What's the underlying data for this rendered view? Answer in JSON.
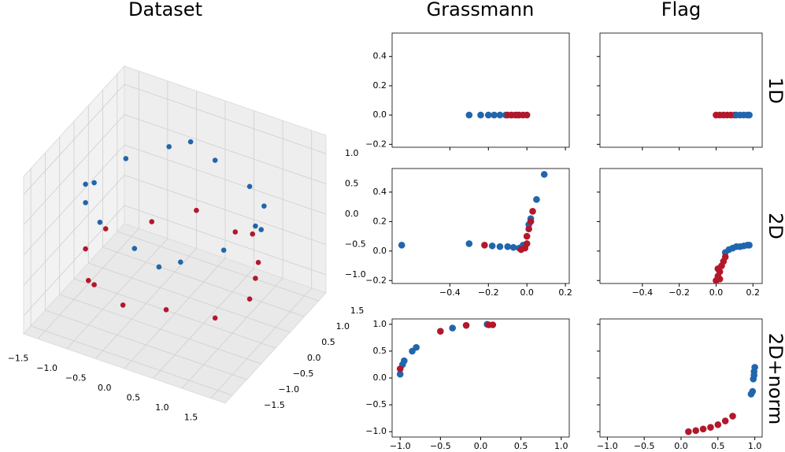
{
  "column_titles": [
    "Grassmann",
    "Flag"
  ],
  "row_labels": [
    "1D",
    "2D",
    "2D+norm"
  ],
  "chart_data": [
    {
      "type": "scatter3d",
      "title": "Dataset",
      "xlim": [
        -1.75,
        1.75
      ],
      "ylim": [
        -1.75,
        1.75
      ],
      "zlim": [
        -1.3,
        1.3
      ],
      "xticks": [
        {
          "value": -1.5,
          "label": "−1.5"
        },
        {
          "value": -1.0,
          "label": "−1.0"
        },
        {
          "value": -0.5,
          "label": "−0.5"
        },
        {
          "value": 0,
          "label": "0.0"
        },
        0.5,
        {
          "value": 1,
          "label": "1.0"
        },
        1.5
      ],
      "yticks": [
        {
          "value": -1.5,
          "label": "−1.5"
        },
        {
          "value": -1.0,
          "label": "−1.0"
        },
        {
          "value": -0.5,
          "label": "−0.5"
        },
        {
          "value": 0,
          "label": "0.0"
        },
        0.5,
        {
          "value": 1,
          "label": "1.0"
        },
        1.5
      ],
      "zticks": [
        {
          "value": -1.0,
          "label": "−1.0"
        },
        {
          "value": -0.5,
          "label": "−0.5"
        },
        {
          "value": 0,
          "label": "0.0"
        },
        0.5,
        {
          "value": 1,
          "label": "1.0"
        }
      ],
      "series": [
        {
          "color": "#b2182b",
          "x": [
            1.3,
            1.0,
            0.4,
            -0.3,
            -0.9,
            -1.35,
            -1.3,
            -0.9,
            -0.2,
            0.5,
            1.1,
            1.4,
            0.8,
            -1.1
          ],
          "y": [
            0.2,
            0.9,
            1.3,
            1.35,
            1.0,
            0.3,
            -0.5,
            -1.0,
            -1.4,
            -1.3,
            -0.8,
            -0.2,
            1.1,
            -0.8
          ],
          "z": [
            -0.4,
            -0.6,
            -0.5,
            -0.4,
            -0.6,
            -0.5,
            -0.4,
            -0.6,
            -0.5,
            -0.4,
            -0.6,
            -0.5,
            -0.3,
            -0.7
          ]
        },
        {
          "color": "#2166ac",
          "x": [
            1.4,
            1.2,
            0.7,
            0.0,
            -0.7,
            -1.2,
            -1.4,
            -1.2,
            -0.7,
            0.0,
            0.7,
            1.2,
            1.3,
            -0.4,
            -1.35,
            0.4
          ],
          "y": [
            0.0,
            0.7,
            1.2,
            1.4,
            1.2,
            0.7,
            0.0,
            -0.7,
            -1.2,
            -1.4,
            -1.2,
            -0.7,
            0.4,
            1.35,
            -0.4,
            -1.35
          ],
          "z": [
            0.6,
            0.5,
            0.4,
            0.5,
            0.6,
            0.5,
            0.4,
            0.5,
            0.6,
            0.5,
            0.4,
            0.5,
            0.3,
            0.7,
            0.6,
            0.3
          ]
        }
      ]
    },
    {
      "type": "scatter",
      "xlim": [
        -0.7,
        0.22
      ],
      "ylim": [
        -0.22,
        0.56
      ],
      "xticks": [
        {
          "value": -0.4,
          "label": "−0.4"
        },
        {
          "value": -0.2,
          "label": "−0.2"
        },
        {
          "value": 0,
          "label": "0.0"
        },
        0.2
      ],
      "yticks": [
        {
          "value": -0.2,
          "label": "−0.2"
        },
        {
          "value": 0,
          "label": "0.0"
        },
        0.2,
        0.4
      ],
      "show_xtick_labels": false,
      "show_ytick_labels": true,
      "series": [
        {
          "color": "#2166ac",
          "x": [
            -0.3,
            -0.24,
            -0.2,
            -0.17,
            -0.14,
            -0.11,
            -0.08,
            -0.05
          ],
          "y": [
            0,
            0,
            0,
            0,
            0,
            0,
            0,
            0
          ]
        },
        {
          "color": "#b2182b",
          "x": [
            -0.1,
            -0.08,
            -0.06,
            -0.04,
            -0.02,
            0.0
          ],
          "y": [
            0,
            0,
            0,
            0,
            0,
            0
          ]
        }
      ]
    },
    {
      "type": "scatter",
      "xlim": [
        -0.63,
        0.25
      ],
      "ylim": [
        -0.22,
        0.56
      ],
      "xticks": [
        {
          "value": -0.4,
          "label": "−0.4"
        },
        {
          "value": -0.2,
          "label": "−0.2"
        },
        {
          "value": 0,
          "label": "0.0"
        },
        0.2
      ],
      "yticks": [
        {
          "value": -0.2,
          "label": "−0.2"
        },
        {
          "value": 0,
          "label": "0.0"
        },
        0.2,
        0.4
      ],
      "show_xtick_labels": false,
      "show_ytick_labels": false,
      "series": [
        {
          "color": "#b2182b",
          "x": [
            0.0,
            0.02,
            0.04,
            0.06,
            0.08,
            0.1
          ],
          "y": [
            0,
            0,
            0,
            0,
            0,
            0
          ]
        },
        {
          "color": "#2166ac",
          "x": [
            0.11,
            0.13,
            0.15,
            0.17,
            0.18
          ],
          "y": [
            0,
            0,
            0,
            0,
            0
          ]
        }
      ]
    },
    {
      "type": "scatter",
      "xlim": [
        -0.7,
        0.22
      ],
      "ylim": [
        -0.22,
        0.56
      ],
      "xticks": [
        {
          "value": -0.4,
          "label": "−0.4"
        },
        {
          "value": -0.2,
          "label": "−0.2"
        },
        {
          "value": 0,
          "label": "0.0"
        },
        0.2
      ],
      "yticks": [
        {
          "value": -0.2,
          "label": "−0.2"
        },
        {
          "value": 0,
          "label": "0.0"
        },
        0.2,
        0.4
      ],
      "show_xtick_labels": true,
      "show_ytick_labels": true,
      "series": [
        {
          "color": "#2166ac",
          "x": [
            -0.65,
            -0.3,
            -0.18,
            -0.14,
            -0.1,
            -0.07,
            -0.04,
            -0.02,
            0.01,
            0.02,
            0.05,
            0.09
          ],
          "y": [
            0.04,
            0.05,
            0.035,
            0.03,
            0.03,
            0.025,
            0.02,
            0.04,
            0.18,
            0.22,
            0.35,
            0.52
          ]
        },
        {
          "color": "#b2182b",
          "x": [
            -0.22,
            -0.03,
            -0.01,
            0.0,
            0.0,
            0.01,
            0.02,
            0.03
          ],
          "y": [
            0.04,
            0.01,
            0.02,
            0.05,
            0.1,
            0.15,
            0.2,
            0.27
          ]
        }
      ]
    },
    {
      "type": "scatter",
      "xlim": [
        -0.63,
        0.25
      ],
      "ylim": [
        -0.22,
        0.56
      ],
      "xticks": [
        {
          "value": -0.4,
          "label": "−0.4"
        },
        {
          "value": -0.2,
          "label": "−0.2"
        },
        {
          "value": 0,
          "label": "0.0"
        },
        0.2
      ],
      "yticks": [
        {
          "value": -0.2,
          "label": "−0.2"
        },
        {
          "value": 0,
          "label": "0.0"
        },
        0.2,
        0.4
      ],
      "show_xtick_labels": true,
      "show_ytick_labels": false,
      "series": [
        {
          "color": "#2166ac",
          "x": [
            0.05,
            0.07,
            0.09,
            0.11,
            0.13,
            0.15,
            0.17,
            0.18
          ],
          "y": [
            -0.01,
            0.01,
            0.02,
            0.03,
            0.03,
            0.035,
            0.04,
            0.04
          ]
        },
        {
          "color": "#b2182b",
          "x": [
            0.0,
            0.01,
            0.02,
            0.03,
            0.04,
            0.05,
            0.02,
            0.01
          ],
          "y": [
            -0.2,
            -0.17,
            -0.14,
            -0.1,
            -0.07,
            -0.04,
            -0.19,
            -0.12
          ]
        }
      ]
    },
    {
      "type": "scatter",
      "xlim": [
        -1.1,
        1.1
      ],
      "ylim": [
        -1.1,
        1.1
      ],
      "xticks": [
        {
          "value": -1.0,
          "label": "−1.0"
        },
        {
          "value": -0.5,
          "label": "−0.5"
        },
        {
          "value": 0,
          "label": "0.0"
        },
        0.5,
        {
          "value": 1,
          "label": "1.0"
        }
      ],
      "yticks": [
        {
          "value": -1.0,
          "label": "−1.0"
        },
        {
          "value": -0.5,
          "label": "−0.5"
        },
        {
          "value": 0,
          "label": "0.0"
        },
        0.5,
        {
          "value": 1,
          "label": "1.0"
        }
      ],
      "show_xtick_labels": true,
      "show_ytick_labels": true,
      "series": [
        {
          "color": "#2166ac",
          "x": [
            -1.0,
            -0.97,
            -0.95,
            -0.85,
            -0.8,
            -0.35,
            0.08
          ],
          "y": [
            0.07,
            0.25,
            0.32,
            0.5,
            0.57,
            0.93,
            1.0
          ]
        },
        {
          "color": "#b2182b",
          "x": [
            -1.0,
            -0.5,
            -0.18,
            0.1,
            0.15
          ],
          "y": [
            0.17,
            0.87,
            0.98,
            0.99,
            0.99
          ]
        }
      ]
    },
    {
      "type": "scatter",
      "xlim": [
        -1.1,
        1.1
      ],
      "ylim": [
        -1.1,
        1.1
      ],
      "xticks": [
        {
          "value": -1.0,
          "label": "−1.0"
        },
        {
          "value": -0.5,
          "label": "−0.5"
        },
        {
          "value": 0,
          "label": "0.0"
        },
        0.5,
        {
          "value": 1,
          "label": "1.0"
        }
      ],
      "yticks": [
        {
          "value": -1.0,
          "label": "−1.0"
        },
        {
          "value": -0.5,
          "label": "−0.5"
        },
        {
          "value": 0,
          "label": "0.0"
        },
        0.5,
        {
          "value": 1,
          "label": "1.0"
        }
      ],
      "show_xtick_labels": true,
      "show_ytick_labels": false,
      "series": [
        {
          "color": "#2166ac",
          "x": [
            1.0,
            0.99,
            0.99,
            0.98,
            0.97,
            0.95
          ],
          "y": [
            0.2,
            0.12,
            0.05,
            -0.02,
            -0.25,
            -0.3
          ]
        },
        {
          "color": "#b2182b",
          "x": [
            0.1,
            0.2,
            0.3,
            0.4,
            0.5,
            0.6,
            0.7
          ],
          "y": [
            -1.0,
            -0.98,
            -0.95,
            -0.92,
            -0.87,
            -0.8,
            -0.71
          ]
        }
      ]
    }
  ]
}
